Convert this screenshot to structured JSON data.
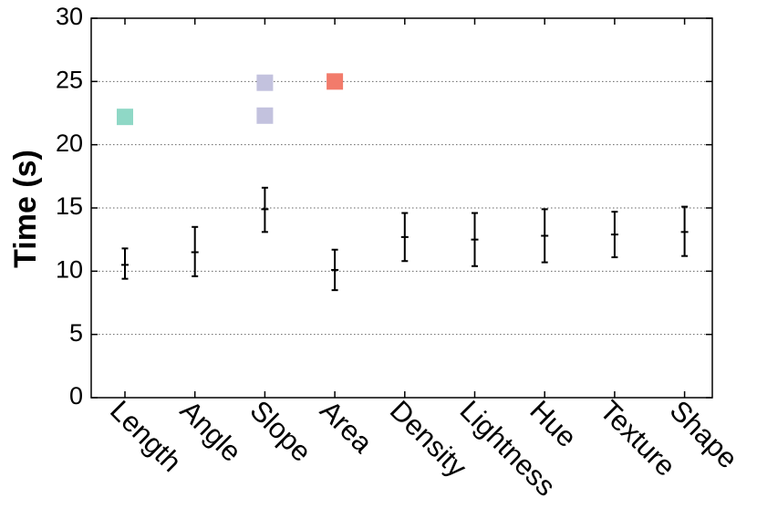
{
  "chart_data": {
    "type": "scatter",
    "title": "",
    "xlabel": "",
    "ylabel": "Time (s)",
    "categories": [
      "Length",
      "Angle",
      "Slope",
      "Area",
      "Density",
      "Lightness",
      "Hue",
      "Texture",
      "Shape"
    ],
    "ylim": [
      0,
      30
    ],
    "yticks": [
      "0",
      "5",
      "10",
      "15",
      "20",
      "25",
      "30"
    ],
    "grid": "horizontal dotted",
    "series": [
      {
        "mean": [
          10.5,
          11.5,
          14.9,
          10.1,
          12.7,
          12.5,
          12.8,
          12.9,
          13.1
        ],
        "err_low": [
          9.4,
          9.6,
          13.1,
          8.5,
          10.8,
          10.4,
          10.7,
          11.1,
          11.2
        ],
        "err_high": [
          11.8,
          13.5,
          16.6,
          11.7,
          14.6,
          14.6,
          14.9,
          14.7,
          15.1
        ]
      }
    ],
    "markers": [
      {
        "category": "Length",
        "y": 22.2,
        "color": "#8fd8c6"
      },
      {
        "category": "Slope",
        "y": 24.9,
        "color": "#c3c2de"
      },
      {
        "category": "Slope",
        "y": 22.3,
        "color": "#c3c2de"
      },
      {
        "category": "Area",
        "y": 25.0,
        "color": "#f27b6b"
      }
    ]
  }
}
